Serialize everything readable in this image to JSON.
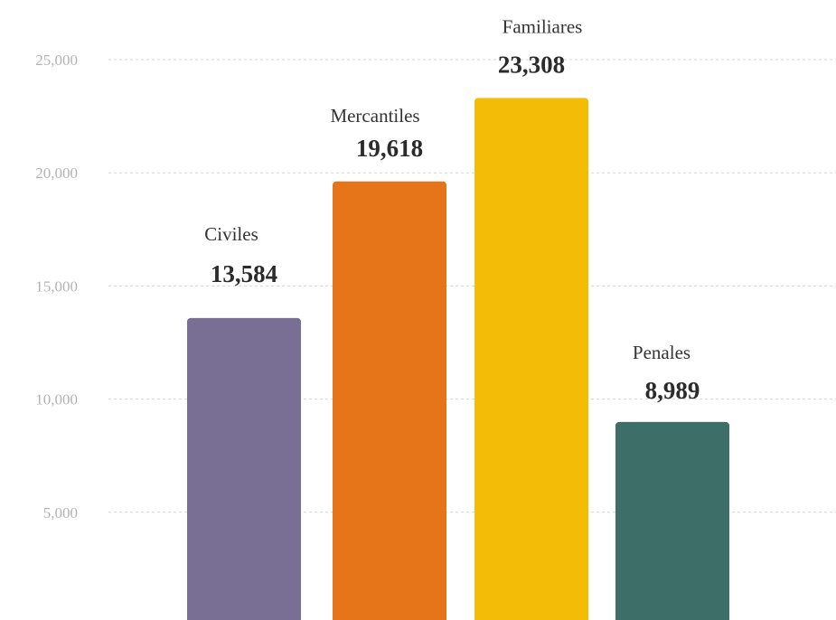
{
  "chart_data": {
    "type": "bar",
    "categories": [
      "Civiles",
      "Mercantiles",
      "Familiares",
      "Penales"
    ],
    "values": [
      13584,
      19618,
      23308,
      8989
    ],
    "value_labels": [
      "13,584",
      "19,618",
      "23,308",
      "8,989"
    ],
    "colors": [
      "#796f95",
      "#e57518",
      "#f3bd07",
      "#3e6e68"
    ],
    "yticks": [
      5000,
      10000,
      15000,
      20000,
      25000
    ],
    "ytick_labels": [
      "5,000",
      "10,000",
      "15,000",
      "20,000",
      "25,000"
    ],
    "ylim": [
      0,
      25000
    ],
    "grid": true,
    "legend": "none"
  }
}
